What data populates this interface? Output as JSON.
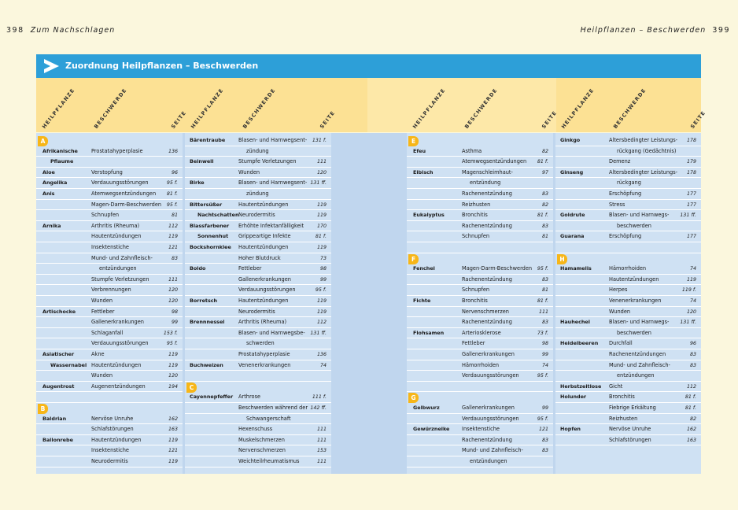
{
  "running_heads": {
    "left_page": "398",
    "left_text": "Zum Nachschlagen",
    "right_text": "Heilpflanzen – Beschwerden",
    "right_page": "399"
  },
  "title": "Zuordnung Heilpflanzen – Beschwerden",
  "headers": {
    "plant": "HEILPFLANZE",
    "complaint": "BESCHWERDE",
    "page": "SEITE"
  },
  "columns": [
    {
      "rows": [
        {
          "badge": "A"
        },
        {
          "plant": "Afrikanische",
          "complaint": "Prostatahyperplasie",
          "page": "136"
        },
        {
          "plant": "Pflaume",
          "indent": true
        },
        {
          "plant": "Aloe",
          "complaint": "Verstopfung",
          "page": "96"
        },
        {
          "plant": "Angelika",
          "complaint": "Verdauungsstörungen",
          "page": "95 f."
        },
        {
          "plant": "Anis",
          "complaint": "Atemwegsentzündungen",
          "page": "81 f."
        },
        {
          "complaint": "Magen-Darm-Beschwerden",
          "page": "95 f."
        },
        {
          "complaint": "Schnupfen",
          "page": "81"
        },
        {
          "plant": "Arnika",
          "complaint": "Arthritis (Rheuma)",
          "page": "112"
        },
        {
          "complaint": "Hautentzündungen",
          "page": "119"
        },
        {
          "complaint": "Insektenstiche",
          "page": "121"
        },
        {
          "complaint": "Mund- und Zahnfleisch-",
          "page": "83"
        },
        {
          "complaint": "entzündungen",
          "cont": true
        },
        {
          "complaint": "Stumpfe Verletzungen",
          "page": "111"
        },
        {
          "complaint": "Verbrennungen",
          "page": "120"
        },
        {
          "complaint": "Wunden",
          "page": "120"
        },
        {
          "plant": "Artischocke",
          "complaint": "Fettleber",
          "page": "98"
        },
        {
          "complaint": "Gallenerkrankungen",
          "page": "99"
        },
        {
          "complaint": "Schlaganfall",
          "page": "153 f."
        },
        {
          "complaint": "Verdauungsstörungen",
          "page": "95 f."
        },
        {
          "plant": "Asiatischer",
          "complaint": "Akne",
          "page": "119"
        },
        {
          "plant": "Wassernabel",
          "indent": true,
          "complaint": "Hautentzündungen",
          "page": "119"
        },
        {
          "complaint": "Wunden",
          "page": "120"
        },
        {
          "plant": "Augentrost",
          "complaint": "Augenentzündungen",
          "page": "194"
        },
        {
          "blank": true
        },
        {
          "badge": "B"
        },
        {
          "plant": "Baldrian",
          "complaint": "Nervöse Unruhe",
          "page": "162"
        },
        {
          "complaint": "Schlafstörungen",
          "page": "163"
        },
        {
          "plant": "Ballonrebe",
          "complaint": "Hautentzündungen",
          "page": "119"
        },
        {
          "complaint": "Insektenstiche",
          "page": "121"
        },
        {
          "complaint": "Neurodermitis",
          "page": "119"
        }
      ]
    },
    {
      "rows": [
        {
          "plant": "Bärentraube",
          "complaint": "Blasen- und Harnwegsent-",
          "page": "131 f."
        },
        {
          "complaint": "zündung",
          "cont": true
        },
        {
          "plant": "Beinwell",
          "complaint": "Stumpfe Verletzungen",
          "page": "111"
        },
        {
          "complaint": "Wunden",
          "page": "120"
        },
        {
          "plant": "Birke",
          "complaint": "Blasen- und Harnwegsent-",
          "page": "131 ff."
        },
        {
          "complaint": "zündung",
          "cont": true
        },
        {
          "plant": "Bittersüßer",
          "complaint": "Hautentzündungen",
          "page": "119"
        },
        {
          "plant": "Nachtschatten",
          "indent": true,
          "complaint": "Neurodermitis",
          "page": "119"
        },
        {
          "plant": "Blassfarbener",
          "complaint": "Erhöhte Infektanfälligkeit",
          "page": "170"
        },
        {
          "plant": "Sonnenhut",
          "indent": true,
          "complaint": "Grippeartige Infekte",
          "page": "81 f."
        },
        {
          "plant": "Bockshornklee",
          "complaint": "Hautentzündungen",
          "page": "119"
        },
        {
          "complaint": "Hoher Blutdruck",
          "page": "73"
        },
        {
          "plant": "Boldo",
          "complaint": "Fettleber",
          "page": "98"
        },
        {
          "complaint": "Gallenerkrankungen",
          "page": "99"
        },
        {
          "complaint": "Verdauungsstörungen",
          "page": "95 f."
        },
        {
          "plant": "Borretsch",
          "complaint": "Hautentzündungen",
          "page": "119"
        },
        {
          "complaint": "Neurodermitis",
          "page": "119"
        },
        {
          "plant": "Brennnessel",
          "complaint": "Arthritis (Rheuma)",
          "page": "112"
        },
        {
          "complaint": "Blasen- und Harnwegsbe-",
          "page": "131 ff."
        },
        {
          "complaint": "schwerden",
          "cont": true
        },
        {
          "complaint": "Prostatahyperplasie",
          "page": "136"
        },
        {
          "plant": "Buchweizen",
          "complaint": "Venenerkrankungen",
          "page": "74"
        },
        {
          "blank": true
        },
        {
          "badge": "C"
        },
        {
          "plant": "Cayennepfeffer",
          "complaint": "Arthrose",
          "page": "111 f."
        },
        {
          "complaint": "Beschwerden während der",
          "page": "142 ff."
        },
        {
          "complaint": "Schwangerschaft",
          "cont": true
        },
        {
          "complaint": "Hexenschuss",
          "page": "111"
        },
        {
          "complaint": "Muskelschmerzen",
          "page": "111"
        },
        {
          "complaint": "Nervenschmerzen",
          "page": "153"
        },
        {
          "complaint": "Weichteilrheumatismus",
          "page": "111"
        }
      ]
    },
    {
      "rows": [
        {
          "badge": "E"
        },
        {
          "plant": "Efeu",
          "complaint": "Asthma",
          "page": "82"
        },
        {
          "complaint": "Atemwegsentzündungen",
          "page": "81 f."
        },
        {
          "plant": "Eibisch",
          "complaint": "Magenschleimhaut-",
          "page": "97"
        },
        {
          "complaint": "entzündung",
          "cont": true
        },
        {
          "complaint": "Rachenentzündung",
          "page": "83"
        },
        {
          "complaint": "Reizhusten",
          "page": "82"
        },
        {
          "plant": "Eukalyptus",
          "complaint": "Bronchitis",
          "page": "81 f."
        },
        {
          "complaint": "Rachenentzündung",
          "page": "83"
        },
        {
          "complaint": "Schnupfen",
          "page": "81"
        },
        {
          "blank": true
        },
        {
          "badge": "F"
        },
        {
          "plant": "Fenchel",
          "complaint": "Magen-Darm-Beschwerden",
          "page": "95 f."
        },
        {
          "complaint": "Rachenentzündung",
          "page": "83"
        },
        {
          "complaint": "Schnupfen",
          "page": "81"
        },
        {
          "plant": "Fichte",
          "complaint": "Bronchitis",
          "page": "81 f."
        },
        {
          "complaint": "Nervenschmerzen",
          "page": "111"
        },
        {
          "complaint": "Rachenentzündung",
          "page": "83"
        },
        {
          "plant": "Flohsamen",
          "complaint": "Arteriosklerose",
          "page": "73 f."
        },
        {
          "complaint": "Fettleber",
          "page": "98"
        },
        {
          "complaint": "Gallenerkrankungen",
          "page": "99"
        },
        {
          "complaint": "Hämorrhoiden",
          "page": "74"
        },
        {
          "complaint": "Verdauungsstörungen",
          "page": "95 f."
        },
        {
          "blank": true
        },
        {
          "badge": "G"
        },
        {
          "plant": "Gelbwurz",
          "complaint": "Gallenerkrankungen",
          "page": "99"
        },
        {
          "complaint": "Verdauungsstörungen",
          "page": "95 f."
        },
        {
          "plant": "Gewürznelke",
          "complaint": "Insektenstiche",
          "page": "121"
        },
        {
          "complaint": "Rachenentzündung",
          "page": "83"
        },
        {
          "complaint": "Mund- und Zahnfleisch-",
          "page": "83"
        },
        {
          "complaint": "entzündungen",
          "cont": true
        }
      ]
    },
    {
      "rows": [
        {
          "plant": "Ginkgo",
          "complaint": "Altersbedingter Leistungs-",
          "page": "178"
        },
        {
          "complaint": "rückgang (Gedächtnis)",
          "cont": true
        },
        {
          "complaint": "Demenz",
          "page": "179"
        },
        {
          "plant": "Ginseng",
          "complaint": "Altersbedingter Leistungs-",
          "page": "178"
        },
        {
          "complaint": "rückgang",
          "cont": true
        },
        {
          "complaint": "Erschöpfung",
          "page": "177"
        },
        {
          "complaint": "Stress",
          "page": "177"
        },
        {
          "plant": "Goldrute",
          "complaint": "Blasen- und Harnwegs-",
          "page": "131 ff."
        },
        {
          "complaint": "beschwerden",
          "cont": true
        },
        {
          "plant": "Guarana",
          "complaint": "Erschöpfung",
          "page": "177"
        },
        {
          "blank": true
        },
        {
          "badge": "H"
        },
        {
          "plant": "Hamamelis",
          "complaint": "Hämorrhoiden",
          "page": "74"
        },
        {
          "complaint": "Hautentzündungen",
          "page": "119"
        },
        {
          "complaint": "Herpes",
          "page": "119 f."
        },
        {
          "complaint": "Venenerkrankungen",
          "page": "74"
        },
        {
          "complaint": "Wunden",
          "page": "120"
        },
        {
          "plant": "Hauhechel",
          "complaint": "Blasen- und Harnwegs-",
          "page": "131 ff."
        },
        {
          "complaint": "beschwerden",
          "cont": true
        },
        {
          "plant": "Heidelbeeren",
          "complaint": "Durchfall",
          "page": "96"
        },
        {
          "complaint": "Rachenentzündungen",
          "page": "83"
        },
        {
          "complaint": "Mund- und Zahnfleisch-",
          "page": "83"
        },
        {
          "complaint": "entzündungen",
          "cont": true
        },
        {
          "plant": "Herbstzeitlose",
          "complaint": "Gicht",
          "page": "112"
        },
        {
          "plant": "Holunder",
          "complaint": "Bronchitis",
          "page": "81 f."
        },
        {
          "complaint": "Fiebrige Erkältung",
          "page": "81 f."
        },
        {
          "complaint": "Reizhusten",
          "page": "82"
        },
        {
          "plant": "Hopfen",
          "complaint": "Nervöse Unruhe",
          "page": "162"
        },
        {
          "complaint": "Schlafstörungen",
          "page": "163"
        }
      ]
    }
  ]
}
